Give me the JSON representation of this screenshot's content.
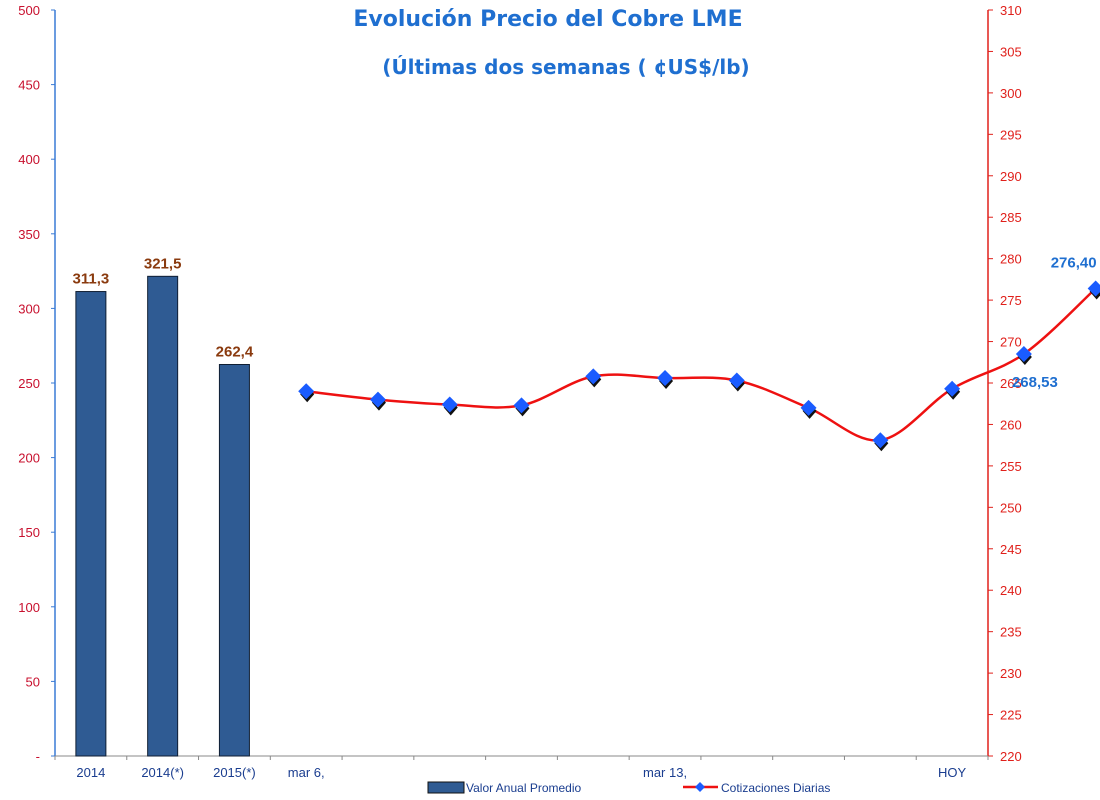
{
  "chart_data": {
    "type": "bar+line",
    "title": "Evolución Precio del Cobre LME",
    "subtitle": "(Últimas dos semanas ( ¢US$/lb)",
    "left_axis": {
      "ylim": [
        0,
        500
      ],
      "ticks": [
        "-",
        "50",
        "100",
        "150",
        "200",
        "250",
        "300",
        "350",
        "400",
        "450",
        "500"
      ],
      "color": "#c8102e"
    },
    "right_axis": {
      "ylim": [
        220,
        310
      ],
      "ticks": [
        "220",
        "225",
        "230",
        "235",
        "240",
        "245",
        "250",
        "255",
        "260",
        "265",
        "270",
        "275",
        "280",
        "285",
        "290",
        "295",
        "300",
        "305",
        "310"
      ],
      "color": "#e0201b"
    },
    "categories": [
      "2014",
      "2014(*)",
      "2015(*)",
      "mar 6,",
      "",
      "",
      "",
      "",
      "mar 13,",
      "",
      "",
      "",
      "HOY"
    ],
    "bar_series": {
      "name": "Valor Anual Promedio",
      "color": "#2f5b93",
      "values": [
        311.3,
        321.5,
        262.4
      ],
      "labels": [
        "311,3",
        "321,5",
        "262,4"
      ]
    },
    "line_series": {
      "name": "Cotizaciones Diarias",
      "color": "#ee1111",
      "marker_color": "#1a5cff",
      "values": [
        264.0,
        263.0,
        262.4,
        262.3,
        265.8,
        265.6,
        265.3,
        262.0,
        258.1,
        264.3,
        268.5,
        276.4
      ],
      "labels": [
        {
          "index": 10,
          "text": "268,53"
        },
        {
          "index": 11,
          "text": "276,40"
        }
      ]
    },
    "legend_position": "bottom-center",
    "grid": false
  }
}
